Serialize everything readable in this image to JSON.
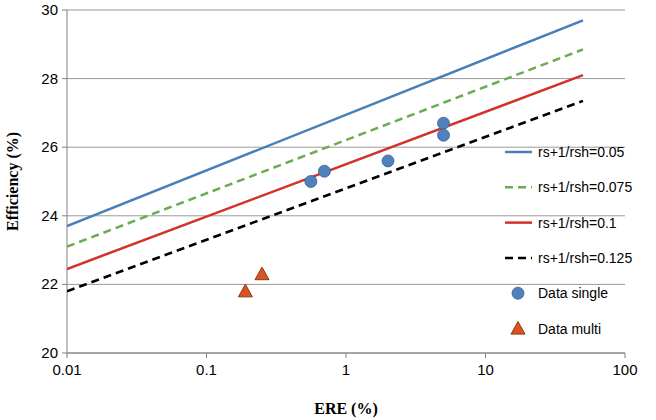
{
  "chart_data": {
    "type": "scatter",
    "x_label": "ERE (%)",
    "y_label": "Efficiency (%)",
    "log": "x",
    "grid": true,
    "legend": "right",
    "xlim": [
      0.01,
      100
    ],
    "xticks": [
      0.01,
      0.1,
      1,
      10,
      100
    ],
    "ylim": [
      20,
      30
    ],
    "yticks": [
      20,
      22,
      24,
      26,
      28,
      30
    ],
    "series": [
      {
        "name": "rs+1/rsh=0.05",
        "type": "line",
        "color": "#4a7ebb",
        "line_style": "solid",
        "x": [
          0.01,
          50
        ],
        "values": [
          23.7,
          29.7
        ]
      },
      {
        "name": "rs+1/rsh=0.075",
        "type": "line",
        "color": "#6aac4f",
        "line_style": "dashed",
        "x": [
          0.01,
          50
        ],
        "values": [
          23.1,
          28.85
        ]
      },
      {
        "name": "rs+1/rsh=0.1",
        "type": "line",
        "color": "#d2302a",
        "line_style": "solid",
        "x": [
          0.01,
          50
        ],
        "values": [
          22.45,
          28.1
        ]
      },
      {
        "name": "rs+1/rsh=0.125",
        "type": "line",
        "color": "#000000",
        "line_style": "dashed",
        "x": [
          0.01,
          50
        ],
        "values": [
          21.8,
          27.35
        ]
      },
      {
        "name": "Data single",
        "type": "scatter",
        "color": "#4f81bd",
        "marker": "circle",
        "x": [
          0.56,
          0.7,
          2.0,
          5.0,
          5.0
        ],
        "values": [
          25.0,
          25.3,
          25.6,
          26.7,
          26.35
        ]
      },
      {
        "name": "Data multi",
        "type": "scatter",
        "color": "#d9541e",
        "marker": "triangle",
        "x": [
          0.19,
          0.25
        ],
        "values": [
          21.8,
          22.3
        ]
      }
    ]
  }
}
